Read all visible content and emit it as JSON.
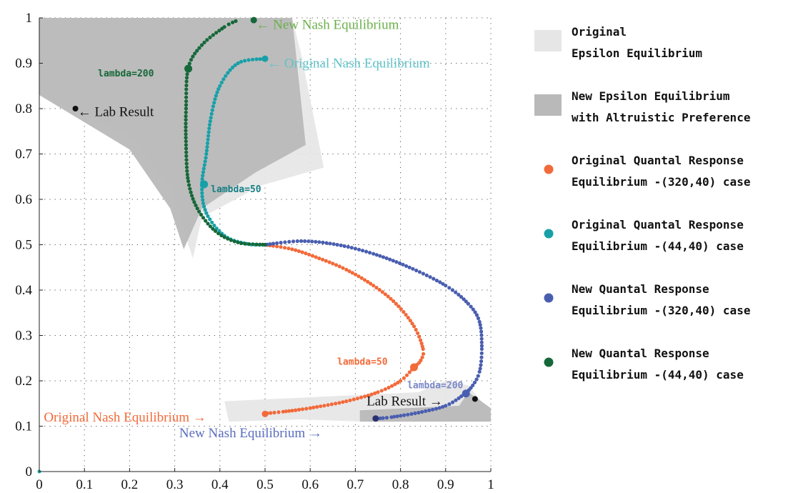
{
  "chart_data": {
    "type": "scatter",
    "xlim": [
      0,
      1
    ],
    "ylim": [
      0,
      1
    ],
    "grid": true,
    "x_ticks": [
      "0",
      "0.1",
      "0.2",
      "0.3",
      "0.4",
      "0.5",
      "0.6",
      "0.7",
      "0.8",
      "0.9",
      "1"
    ],
    "y_ticks": [
      "0",
      "0.1",
      "0.2",
      "0.3",
      "0.4",
      "0.5",
      "0.6",
      "0.7",
      "0.8",
      "0.9",
      "1"
    ],
    "legend_position": "right",
    "legend": [
      {
        "kind": "patch",
        "color": "#e6e6e6",
        "lines": [
          "Original",
          "Epsilon Equilibrium"
        ]
      },
      {
        "kind": "patch",
        "color": "#b9b9b9",
        "lines": [
          "New Epsilon Equilibrium",
          "with Altruistic Preference"
        ]
      },
      {
        "kind": "dot",
        "color": "#f26a3a",
        "lines": [
          "Original Quantal Response",
          "Equilibrium -(320,40) case"
        ]
      },
      {
        "kind": "dot",
        "color": "#18a0a8",
        "lines": [
          "Original Quantal Response",
          "Equilibrium -(44,40) case"
        ]
      },
      {
        "kind": "dot",
        "color": "#4a5eb0",
        "lines": [
          "New Quantal Response",
          "Equilibrium -(320,40) case"
        ]
      },
      {
        "kind": "dot",
        "color": "#16683a",
        "lines": [
          "New Quantal Response",
          "Equilibrium -(44,40) case"
        ]
      }
    ],
    "regions": [
      {
        "name": "Original Epsilon Equilibrium (upper)",
        "color": "#e6e6e6",
        "points": [
          [
            0.0,
            1.0
          ],
          [
            0.56,
            1.0
          ],
          [
            0.58,
            0.92
          ],
          [
            0.63,
            0.67
          ],
          [
            0.49,
            0.63
          ],
          [
            0.36,
            0.56
          ],
          [
            0.34,
            0.47
          ],
          [
            0.29,
            0.63
          ],
          [
            0.2,
            0.74
          ],
          [
            0.0,
            0.83
          ]
        ]
      },
      {
        "name": "Original Epsilon Equilibrium (lower)",
        "color": "#e6e6e6",
        "points": [
          [
            0.41,
            0.155
          ],
          [
            0.84,
            0.175
          ],
          [
            0.9,
            0.2
          ],
          [
            0.95,
            0.19
          ],
          [
            1.0,
            0.13
          ],
          [
            1.0,
            0.11
          ],
          [
            0.72,
            0.11
          ],
          [
            0.58,
            0.115
          ],
          [
            0.42,
            0.11
          ]
        ]
      },
      {
        "name": "New Epsilon Equilibrium (upper)",
        "color": "#b9b9b9",
        "points": [
          [
            0.0,
            1.0
          ],
          [
            0.56,
            1.0
          ],
          [
            0.59,
            0.72
          ],
          [
            0.48,
            0.66
          ],
          [
            0.36,
            0.58
          ],
          [
            0.32,
            0.49
          ],
          [
            0.29,
            0.58
          ],
          [
            0.2,
            0.71
          ],
          [
            0.0,
            0.83
          ]
        ]
      },
      {
        "name": "New Epsilon Equilibrium (lower)",
        "color": "#b9b9b9",
        "points": [
          [
            0.71,
            0.135
          ],
          [
            0.93,
            0.145
          ],
          [
            0.95,
            0.175
          ],
          [
            1.0,
            0.14
          ],
          [
            1.0,
            0.11
          ],
          [
            0.71,
            0.11
          ]
        ]
      }
    ],
    "series": [
      {
        "name": "Original Quantal Response Equilibrium -(320,40) case",
        "color": "#f26a3a",
        "dot_size": 2.6,
        "points": [
          [
            0.5,
            0.5
          ],
          [
            0.56,
            0.49
          ],
          [
            0.62,
            0.47
          ],
          [
            0.68,
            0.445
          ],
          [
            0.74,
            0.41
          ],
          [
            0.79,
            0.37
          ],
          [
            0.83,
            0.32
          ],
          [
            0.85,
            0.27
          ],
          [
            0.845,
            0.245
          ],
          [
            0.83,
            0.23
          ],
          [
            0.8,
            0.2
          ],
          [
            0.75,
            0.175
          ],
          [
            0.68,
            0.155
          ],
          [
            0.6,
            0.14
          ],
          [
            0.54,
            0.132
          ],
          [
            0.5,
            0.128
          ]
        ]
      },
      {
        "name": "Original Quantal Response Equilibrium -(44,40) case",
        "color": "#18a0a8",
        "dot_size": 2.6,
        "points": [
          [
            0.5,
            0.5
          ],
          [
            0.46,
            0.502
          ],
          [
            0.41,
            0.52
          ],
          [
            0.37,
            0.57
          ],
          [
            0.36,
            0.63
          ],
          [
            0.37,
            0.7
          ],
          [
            0.38,
            0.78
          ],
          [
            0.4,
            0.85
          ],
          [
            0.44,
            0.9
          ],
          [
            0.5,
            0.91
          ]
        ]
      },
      {
        "name": "New Quantal Response Equilibrium -(320,40) case",
        "color": "#4a5eb0",
        "dot_size": 2.6,
        "points": [
          [
            0.5,
            0.5
          ],
          [
            0.58,
            0.508
          ],
          [
            0.66,
            0.5
          ],
          [
            0.74,
            0.48
          ],
          [
            0.82,
            0.45
          ],
          [
            0.9,
            0.41
          ],
          [
            0.95,
            0.37
          ],
          [
            0.975,
            0.33
          ],
          [
            0.98,
            0.27
          ],
          [
            0.975,
            0.22
          ],
          [
            0.96,
            0.19
          ],
          [
            0.94,
            0.17
          ],
          [
            0.9,
            0.145
          ],
          [
            0.84,
            0.13
          ],
          [
            0.78,
            0.12
          ],
          [
            0.75,
            0.117
          ]
        ]
      },
      {
        "name": "New Quantal Response Equilibrium -(44,40) case",
        "color": "#16683a",
        "dot_size": 2.6,
        "points": [
          [
            0.5,
            0.5
          ],
          [
            0.44,
            0.505
          ],
          [
            0.39,
            0.53
          ],
          [
            0.35,
            0.58
          ],
          [
            0.33,
            0.64
          ],
          [
            0.325,
            0.72
          ],
          [
            0.325,
            0.8
          ],
          [
            0.33,
            0.89
          ],
          [
            0.36,
            0.94
          ],
          [
            0.41,
            0.98
          ],
          [
            0.44,
            0.995
          ]
        ]
      }
    ],
    "markers": [
      {
        "label": "Lab Result (upper)",
        "x": 0.08,
        "y": 0.8,
        "color": "#111111",
        "r": 4
      },
      {
        "label": "Lab Result (lower)",
        "x": 0.965,
        "y": 0.16,
        "color": "#111111",
        "r": 4
      },
      {
        "label": "New Nash Equilibrium (upper)",
        "x": 0.475,
        "y": 0.995,
        "color": "#16683a",
        "r": 4.5
      },
      {
        "label": "Original Nash Equilibrium (upper)",
        "x": 0.5,
        "y": 0.91,
        "color": "#18a0a8",
        "r": 4.5
      },
      {
        "label": "lambda=200 (upper)",
        "x": 0.33,
        "y": 0.888,
        "color": "#16683a",
        "r": 5.5
      },
      {
        "label": "lambda=50 (upper)",
        "x": 0.365,
        "y": 0.633,
        "color": "#18a0a8",
        "r": 5.5
      },
      {
        "label": "lambda=50 (lower)",
        "x": 0.83,
        "y": 0.23,
        "color": "#f26a3a",
        "r": 5.5
      },
      {
        "label": "lambda=200 (lower)",
        "x": 0.945,
        "y": 0.172,
        "color": "#4a5eb0",
        "r": 5.5
      },
      {
        "label": "Original Nash Equilibrium (lower)",
        "x": 0.5,
        "y": 0.127,
        "color": "#f26a3a",
        "r": 4.5
      },
      {
        "label": "New Nash Equilibrium (lower)",
        "x": 0.745,
        "y": 0.117,
        "color": "#2a3170",
        "r": 4.5
      },
      {
        "label": "origin",
        "x": 0.0,
        "y": 0.0,
        "color": "#18a0a8",
        "r": 2.5
      }
    ],
    "annotations": [
      {
        "text": "<- New Nash Equilibrium",
        "x": 0.48,
        "y": 0.985,
        "color": "#6ab04a",
        "style": "serif"
      },
      {
        "text": "<- Original Nash Equilibrium",
        "x": 0.505,
        "y": 0.9,
        "color": "#5ec3c8",
        "style": "serif"
      },
      {
        "text": "lambda=200",
        "x": 0.13,
        "y": 0.88,
        "color": "#16683a",
        "style": "mono"
      },
      {
        "text": "<- Lab Result",
        "x": 0.085,
        "y": 0.793,
        "color": "#111111",
        "style": "serif"
      },
      {
        "text": "lambda=50",
        "x": 0.38,
        "y": 0.625,
        "color": "#167f85",
        "style": "mono"
      },
      {
        "text": "lambda=50",
        "x": 0.66,
        "y": 0.245,
        "color": "#f26a3a",
        "style": "mono"
      },
      {
        "text": "lambda=200",
        "x": 0.815,
        "y": 0.193,
        "color": "#7a87c8",
        "style": "mono"
      },
      {
        "text": "Lab Result ->",
        "x": 0.725,
        "y": 0.155,
        "color": "#111111",
        "style": "serif"
      },
      {
        "text": "Original Nash Equilibrium ->",
        "x": 0.01,
        "y": 0.12,
        "color": "#f26a3a",
        "style": "serif"
      },
      {
        "text": "New Nash Equilibrium ->",
        "x": 0.31,
        "y": 0.085,
        "color": "#5a6cc0",
        "style": "serif"
      }
    ]
  }
}
